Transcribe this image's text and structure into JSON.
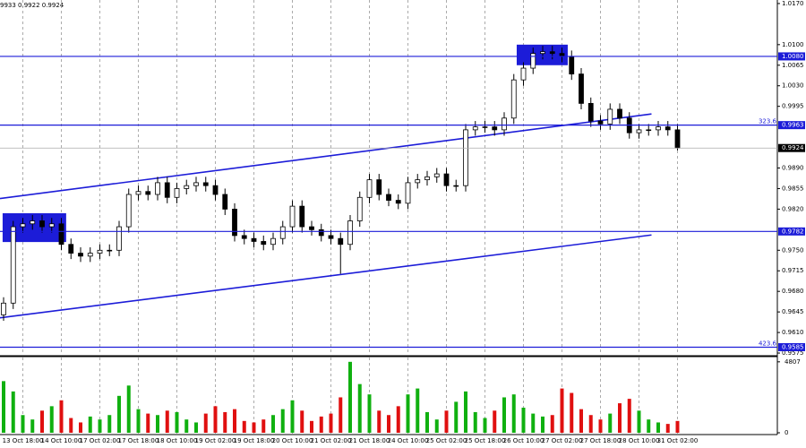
{
  "chart_data": [
    {
      "type": "candlestick",
      "header": "9933 0.9922 0.9924",
      "categories": [
        null,
        null,
        "13 Oct 18:00",
        null,
        null,
        null,
        "14 Oct 10:00",
        null,
        null,
        null,
        "17 Oct 02:00",
        null,
        null,
        null,
        "17 Oct 18:00",
        null,
        null,
        null,
        "18 Oct 10:00",
        null,
        null,
        null,
        "19 Oct 02:00",
        null,
        null,
        null,
        "19 Oct 18:00",
        null,
        null,
        null,
        "20 Oct 10:00",
        null,
        null,
        null,
        "21 Oct 02:00",
        null,
        null,
        null,
        "21 Oct 18:00",
        null,
        null,
        null,
        "24 Oct 10:00",
        null,
        null,
        null,
        "25 Oct 02:00",
        null,
        null,
        null,
        "25 Oct 18:00",
        null,
        null,
        null,
        "26 Oct 10:00",
        null,
        null,
        null,
        "27 Oct 02:00",
        null,
        null,
        null,
        "27 Oct 18:00",
        null,
        null,
        null,
        "28 Oct 10:00",
        null,
        null,
        null,
        "31 Oct 02:00"
      ],
      "open": [
        0.964,
        0.966,
        0.979,
        0.9795,
        0.98,
        0.979,
        0.9795,
        0.976,
        0.9745,
        0.974,
        0.9745,
        0.975,
        0.975,
        0.979,
        0.9845,
        0.985,
        0.9845,
        0.9865,
        0.984,
        0.9855,
        0.986,
        0.9865,
        0.986,
        0.9845,
        0.982,
        0.9775,
        0.977,
        0.9765,
        0.976,
        0.977,
        0.979,
        0.9825,
        0.979,
        0.9785,
        0.9775,
        0.977,
        0.976,
        0.98,
        0.984,
        0.987,
        0.9845,
        0.9835,
        0.983,
        0.9865,
        0.987,
        0.9875,
        0.988,
        0.986,
        0.986,
        0.9955,
        0.996,
        0.996,
        0.9955,
        0.9975,
        1.004,
        1.006,
        1.0085,
        1.0088,
        1.0085,
        1.008,
        1.005,
        1.0,
        0.997,
        0.9965,
        0.999,
        0.9975,
        0.995,
        0.9955,
        0.9955,
        0.996,
        0.9955
      ],
      "high": [
        0.967,
        0.98,
        0.9805,
        0.981,
        0.981,
        0.9805,
        0.9805,
        0.977,
        0.9755,
        0.9755,
        0.976,
        0.976,
        0.98,
        0.9855,
        0.986,
        0.986,
        0.9875,
        0.9875,
        0.9865,
        0.987,
        0.9875,
        0.9875,
        0.987,
        0.9855,
        0.983,
        0.9785,
        0.978,
        0.9775,
        0.978,
        0.98,
        0.9835,
        0.9835,
        0.98,
        0.9795,
        0.9785,
        0.978,
        0.981,
        0.985,
        0.988,
        0.988,
        0.9855,
        0.9845,
        0.9875,
        0.988,
        0.9885,
        0.989,
        0.989,
        0.987,
        0.9965,
        0.997,
        0.997,
        0.997,
        0.9985,
        1.005,
        1.007,
        1.0095,
        1.0098,
        1.0098,
        1.0095,
        1.009,
        1.006,
        1.001,
        0.998,
        1.0,
        1.0,
        0.9985,
        0.9965,
        0.9965,
        0.997,
        0.997,
        0.9965
      ],
      "low": [
        0.963,
        0.965,
        0.978,
        0.9785,
        0.978,
        0.978,
        0.975,
        0.9735,
        0.973,
        0.973,
        0.9735,
        0.974,
        0.974,
        0.978,
        0.9835,
        0.9835,
        0.9835,
        0.983,
        0.983,
        0.9845,
        0.985,
        0.985,
        0.9835,
        0.981,
        0.9765,
        0.976,
        0.9755,
        0.975,
        0.975,
        0.976,
        0.978,
        0.978,
        0.9775,
        0.9765,
        0.976,
        0.971,
        0.975,
        0.979,
        0.983,
        0.9835,
        0.9825,
        0.982,
        0.982,
        0.9855,
        0.986,
        0.9865,
        0.985,
        0.985,
        0.985,
        0.9945,
        0.995,
        0.9945,
        0.9945,
        0.9965,
        1.003,
        1.005,
        1.0075,
        1.0075,
        1.007,
        1.004,
        0.999,
        0.996,
        0.9955,
        0.9955,
        0.9965,
        0.994,
        0.994,
        0.9945,
        0.9945,
        0.9945,
        0.992
      ],
      "close": [
        0.966,
        0.979,
        0.9795,
        0.98,
        0.979,
        0.9795,
        0.976,
        0.9745,
        0.974,
        0.9745,
        0.975,
        0.975,
        0.979,
        0.9845,
        0.985,
        0.9845,
        0.9865,
        0.984,
        0.9855,
        0.986,
        0.9865,
        0.986,
        0.9845,
        0.982,
        0.9775,
        0.977,
        0.9765,
        0.976,
        0.977,
        0.979,
        0.9825,
        0.979,
        0.9785,
        0.9775,
        0.977,
        0.976,
        0.98,
        0.984,
        0.987,
        0.9845,
        0.9835,
        0.983,
        0.9865,
        0.987,
        0.9875,
        0.988,
        0.986,
        0.986,
        0.9955,
        0.996,
        0.996,
        0.9955,
        0.9975,
        1.004,
        1.006,
        1.0085,
        1.0088,
        1.0085,
        1.008,
        1.005,
        1.0,
        0.997,
        0.9965,
        0.999,
        0.9975,
        0.995,
        0.9955,
        0.9955,
        0.996,
        0.9955,
        0.9924
      ],
      "candle_color": "#000000",
      "line_color": "#1c1cd8",
      "ylim": [
        0.9572,
        1.0176
      ],
      "yticks": [
        {
          "value": 1.017,
          "label": "1.0170"
        },
        {
          "value": 1.01,
          "label": "1.0100"
        },
        1.0065,
        {
          "value": 1.003,
          "label": "1.0030"
        },
        0.9995,
        {
          "value": 0.989,
          "label": "0.9890"
        },
        0.9855,
        {
          "value": 0.982,
          "label": "0.9820"
        },
        {
          "value": 0.975,
          "label": "0.9750"
        },
        0.9715,
        {
          "value": 0.968,
          "label": "0.9680"
        },
        0.9645,
        {
          "value": 0.961,
          "label": "0.9610"
        },
        0.9575
      ],
      "levels": [
        {
          "price": 1.008,
          "price_label": "1.0080"
        },
        {
          "price": 0.9963,
          "fib": 323.6
        },
        {
          "price": 0.9782
        },
        {
          "price": 0.9585,
          "fib": 423.6
        }
      ],
      "last_price": 0.9924,
      "trendlines": [
        {
          "x": [
            0,
            67.3
          ],
          "y": [
            0.9838,
            0.9982
          ]
        },
        {
          "x": [
            0,
            67.3
          ],
          "y": [
            0.9635,
            0.9776
          ]
        }
      ],
      "zones": [
        {
          "x": [
            -0.1,
            6.5
          ],
          "y": [
            0.9764,
            0.9813
          ]
        },
        {
          "x": [
            53.3,
            58.6
          ],
          "y": [
            1.0065,
            1.01
          ]
        }
      ],
      "grid": true
    },
    {
      "type": "bar",
      "values": [
        3500,
        2800,
        1200,
        900,
        1500,
        1800,
        2200,
        1000,
        700,
        1100,
        900,
        1200,
        2500,
        3200,
        1600,
        1300,
        1200,
        1500,
        1400,
        900,
        700,
        1300,
        1800,
        1400,
        1600,
        800,
        700,
        900,
        1200,
        1600,
        2200,
        1500,
        800,
        1100,
        1300,
        2400,
        4807,
        3300,
        2600,
        1500,
        1200,
        1800,
        2600,
        3000,
        1400,
        900,
        1500,
        2100,
        2800,
        1400,
        1000,
        1500,
        2400,
        2600,
        1700,
        1300,
        1100,
        1200,
        3000,
        2700,
        1600,
        1200,
        900,
        1300,
        2000,
        2300,
        1500,
        900,
        700,
        600,
        800
      ],
      "up_color": "#10b010",
      "down_color": "#e01010",
      "ylim": [
        0,
        5100
      ],
      "yticks": [
        0,
        4807
      ]
    }
  ]
}
